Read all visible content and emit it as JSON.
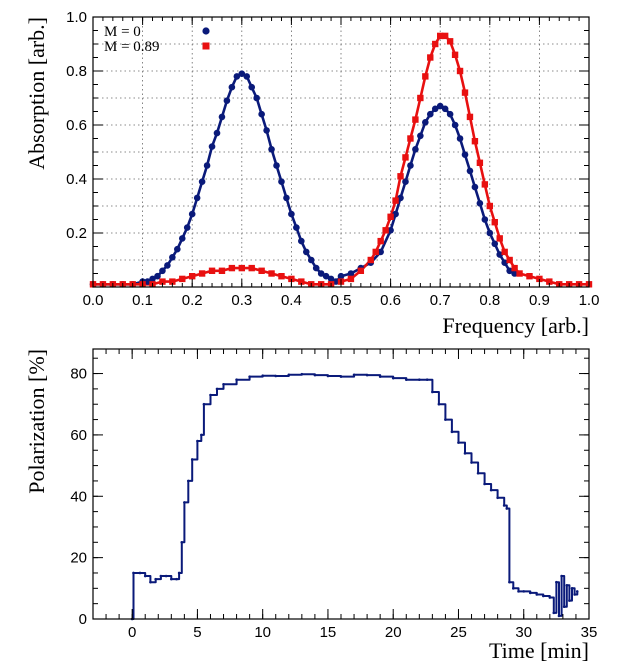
{
  "chart_data": [
    {
      "type": "scatter",
      "title": "",
      "xlabel": "Frequency  [arb.]",
      "ylabel": "Absorption  [arb.]",
      "xlim": [
        0.0,
        1.0
      ],
      "ylim": [
        0.0,
        1.0
      ],
      "xticks": [
        "0.0",
        "0.1",
        "0.2",
        "0.3",
        "0.4",
        "0.5",
        "0.6",
        "0.7",
        "0.8",
        "0.9",
        "1.0"
      ],
      "yticks": [
        "0.2",
        "0.4",
        "0.6",
        "0.8",
        "1.0"
      ],
      "grid": true,
      "legend_position": "top-left",
      "series": [
        {
          "name": "M = 0",
          "marker": "circle",
          "color": "#0a1a7a",
          "points": [
            [
              0.0,
              0.01
            ],
            [
              0.02,
              0.01
            ],
            [
              0.04,
              0.01
            ],
            [
              0.06,
              0.01
            ],
            [
              0.08,
              0.01
            ],
            [
              0.1,
              0.02
            ],
            [
              0.11,
              0.02
            ],
            [
              0.12,
              0.03
            ],
            [
              0.13,
              0.04
            ],
            [
              0.14,
              0.06
            ],
            [
              0.15,
              0.08
            ],
            [
              0.16,
              0.11
            ],
            [
              0.17,
              0.14
            ],
            [
              0.18,
              0.18
            ],
            [
              0.19,
              0.22
            ],
            [
              0.2,
              0.27
            ],
            [
              0.21,
              0.33
            ],
            [
              0.22,
              0.39
            ],
            [
              0.23,
              0.45
            ],
            [
              0.24,
              0.52
            ],
            [
              0.25,
              0.57
            ],
            [
              0.26,
              0.63
            ],
            [
              0.27,
              0.69
            ],
            [
              0.28,
              0.74
            ],
            [
              0.29,
              0.78
            ],
            [
              0.3,
              0.79
            ],
            [
              0.31,
              0.78
            ],
            [
              0.32,
              0.74
            ],
            [
              0.33,
              0.7
            ],
            [
              0.34,
              0.64
            ],
            [
              0.35,
              0.58
            ],
            [
              0.36,
              0.51
            ],
            [
              0.37,
              0.45
            ],
            [
              0.38,
              0.39
            ],
            [
              0.39,
              0.33
            ],
            [
              0.4,
              0.27
            ],
            [
              0.41,
              0.22
            ],
            [
              0.42,
              0.17
            ],
            [
              0.43,
              0.13
            ],
            [
              0.44,
              0.1
            ],
            [
              0.45,
              0.07
            ],
            [
              0.46,
              0.05
            ],
            [
              0.47,
              0.04
            ],
            [
              0.48,
              0.03
            ],
            [
              0.49,
              0.02
            ],
            [
              0.5,
              0.04
            ],
            [
              0.52,
              0.05
            ],
            [
              0.54,
              0.07
            ],
            [
              0.56,
              0.09
            ],
            [
              0.58,
              0.13
            ],
            [
              0.6,
              0.21
            ],
            [
              0.61,
              0.27
            ],
            [
              0.62,
              0.33
            ],
            [
              0.63,
              0.39
            ],
            [
              0.64,
              0.45
            ],
            [
              0.65,
              0.51
            ],
            [
              0.66,
              0.56
            ],
            [
              0.67,
              0.61
            ],
            [
              0.68,
              0.64
            ],
            [
              0.69,
              0.66
            ],
            [
              0.7,
              0.67
            ],
            [
              0.71,
              0.66
            ],
            [
              0.72,
              0.64
            ],
            [
              0.73,
              0.6
            ],
            [
              0.74,
              0.55
            ],
            [
              0.75,
              0.49
            ],
            [
              0.76,
              0.43
            ],
            [
              0.77,
              0.37
            ],
            [
              0.78,
              0.31
            ],
            [
              0.79,
              0.25
            ],
            [
              0.8,
              0.2
            ],
            [
              0.81,
              0.16
            ],
            [
              0.82,
              0.12
            ],
            [
              0.83,
              0.09
            ],
            [
              0.84,
              0.06
            ],
            [
              0.85,
              0.05
            ]
          ]
        },
        {
          "name": "M = 0.89",
          "marker": "square",
          "color": "#e81010",
          "points": [
            [
              0.0,
              0.01
            ],
            [
              0.02,
              0.01
            ],
            [
              0.04,
              0.01
            ],
            [
              0.06,
              0.01
            ],
            [
              0.08,
              0.01
            ],
            [
              0.1,
              0.01
            ],
            [
              0.12,
              0.01
            ],
            [
              0.14,
              0.02
            ],
            [
              0.16,
              0.02
            ],
            [
              0.18,
              0.03
            ],
            [
              0.2,
              0.04
            ],
            [
              0.22,
              0.05
            ],
            [
              0.24,
              0.06
            ],
            [
              0.26,
              0.06
            ],
            [
              0.28,
              0.07
            ],
            [
              0.3,
              0.07
            ],
            [
              0.32,
              0.07
            ],
            [
              0.34,
              0.06
            ],
            [
              0.36,
              0.05
            ],
            [
              0.38,
              0.04
            ],
            [
              0.4,
              0.03
            ],
            [
              0.42,
              0.02
            ],
            [
              0.44,
              0.01
            ],
            [
              0.46,
              0.01
            ],
            [
              0.48,
              0.01
            ],
            [
              0.5,
              0.02
            ],
            [
              0.52,
              0.03
            ],
            [
              0.54,
              0.06
            ],
            [
              0.56,
              0.1
            ],
            [
              0.57,
              0.13
            ],
            [
              0.58,
              0.17
            ],
            [
              0.59,
              0.21
            ],
            [
              0.6,
              0.26
            ],
            [
              0.61,
              0.32
            ],
            [
              0.62,
              0.41
            ],
            [
              0.63,
              0.48
            ],
            [
              0.64,
              0.55
            ],
            [
              0.65,
              0.62
            ],
            [
              0.66,
              0.7
            ],
            [
              0.67,
              0.78
            ],
            [
              0.68,
              0.85
            ],
            [
              0.69,
              0.9
            ],
            [
              0.7,
              0.93
            ],
            [
              0.71,
              0.93
            ],
            [
              0.72,
              0.91
            ],
            [
              0.73,
              0.86
            ],
            [
              0.74,
              0.8
            ],
            [
              0.75,
              0.72
            ],
            [
              0.76,
              0.63
            ],
            [
              0.77,
              0.54
            ],
            [
              0.78,
              0.46
            ],
            [
              0.79,
              0.38
            ],
            [
              0.8,
              0.3
            ],
            [
              0.81,
              0.24
            ],
            [
              0.82,
              0.18
            ],
            [
              0.83,
              0.13
            ],
            [
              0.84,
              0.1
            ],
            [
              0.85,
              0.07
            ],
            [
              0.86,
              0.05
            ],
            [
              0.88,
              0.04
            ],
            [
              0.9,
              0.03
            ],
            [
              0.92,
              0.02
            ],
            [
              0.94,
              0.01
            ],
            [
              0.96,
              0.01
            ],
            [
              0.98,
              0.01
            ],
            [
              1.0,
              0.01
            ]
          ]
        }
      ]
    },
    {
      "type": "line",
      "title": "",
      "xlabel": "Time  [min]",
      "ylabel": "Polarization  [%]",
      "xlim": [
        -3,
        35
      ],
      "ylim": [
        0,
        88
      ],
      "xticks": [
        "0",
        "5",
        "10",
        "15",
        "20",
        "25",
        "30",
        "35"
      ],
      "yticks": [
        "0",
        "20",
        "40",
        "60",
        "80"
      ],
      "grid": false,
      "series": [
        {
          "color": "#0a1a7a",
          "points": [
            [
              0.0,
              0.0
            ],
            [
              0.1,
              15.0
            ],
            [
              0.6,
              15.0
            ],
            [
              1.0,
              14.0
            ],
            [
              1.4,
              12.0
            ],
            [
              1.8,
              13.0
            ],
            [
              2.2,
              14.0
            ],
            [
              2.6,
              14.0
            ],
            [
              3.0,
              13.0
            ],
            [
              3.4,
              13.0
            ],
            [
              3.6,
              15.0
            ],
            [
              3.8,
              25.0
            ],
            [
              4.0,
              38.0
            ],
            [
              4.3,
              45.0
            ],
            [
              4.6,
              52.0
            ],
            [
              5.0,
              58.0
            ],
            [
              5.3,
              60.0
            ],
            [
              5.5,
              70.0
            ],
            [
              6.0,
              73.0
            ],
            [
              6.5,
              75.0
            ],
            [
              7.0,
              76.5
            ],
            [
              8.0,
              78.0
            ],
            [
              9.0,
              79.0
            ],
            [
              10.0,
              79.3
            ],
            [
              11.0,
              79.2
            ],
            [
              12.0,
              79.6
            ],
            [
              13.0,
              79.8
            ],
            [
              14.0,
              79.5
            ],
            [
              15.0,
              79.2
            ],
            [
              16.0,
              79.0
            ],
            [
              17.0,
              79.6
            ],
            [
              18.0,
              79.5
            ],
            [
              19.0,
              79.0
            ],
            [
              20.0,
              78.5
            ],
            [
              21.0,
              78.0
            ],
            [
              22.0,
              78.0
            ],
            [
              22.6,
              78.0
            ],
            [
              23.0,
              74.0
            ],
            [
              23.5,
              70.0
            ],
            [
              24.0,
              65.0
            ],
            [
              24.5,
              61.0
            ],
            [
              25.0,
              57.5
            ],
            [
              25.5,
              54.0
            ],
            [
              26.0,
              51.0
            ],
            [
              26.5,
              47.5
            ],
            [
              27.0,
              44.0
            ],
            [
              27.5,
              42.0
            ],
            [
              28.0,
              39.5
            ],
            [
              28.5,
              37.0
            ],
            [
              28.7,
              36.0
            ],
            [
              28.9,
              12.0
            ],
            [
              29.2,
              10.0
            ],
            [
              29.6,
              9.0
            ],
            [
              30.0,
              9.0
            ],
            [
              30.5,
              8.5
            ],
            [
              31.0,
              8.0
            ],
            [
              31.5,
              7.5
            ],
            [
              32.0,
              7.0
            ],
            [
              32.3,
              2.0
            ],
            [
              32.5,
              12.0
            ],
            [
              32.7,
              1.0
            ],
            [
              32.9,
              14.0
            ],
            [
              33.1,
              4.0
            ],
            [
              33.3,
              11.0
            ],
            [
              33.5,
              6.0
            ],
            [
              33.7,
              10.0
            ],
            [
              33.9,
              8.0
            ],
            [
              34.1,
              9.0
            ]
          ]
        }
      ]
    }
  ]
}
